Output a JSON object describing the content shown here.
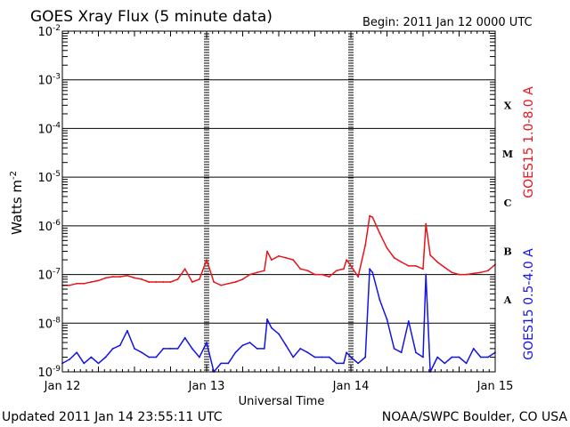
{
  "chart_data": {
    "type": "line",
    "title": "GOES Xray Flux (5 minute data)",
    "begin_label": "Begin:  2011 Jan 12 0000 UTC",
    "xlabel": "Universal Time",
    "ylabel": "Watts m",
    "ylabel_superscript": "-2",
    "y_scale": "log",
    "ylim": [
      1e-09,
      0.01
    ],
    "xlim_days": [
      0,
      3
    ],
    "x_ticks": [
      {
        "label": "Jan 12",
        "day": 0
      },
      {
        "label": "Jan 13",
        "day": 1
      },
      {
        "label": "Jan 14",
        "day": 2
      },
      {
        "label": "Jan 15",
        "day": 3
      }
    ],
    "y_ticks": [
      {
        "base": "10",
        "exp": "-9",
        "value": 1e-09
      },
      {
        "base": "10",
        "exp": "-8",
        "value": 1e-08
      },
      {
        "base": "10",
        "exp": "-7",
        "value": 1e-07
      },
      {
        "base": "10",
        "exp": "-6",
        "value": 1e-06
      },
      {
        "base": "10",
        "exp": "-5",
        "value": 1e-05
      },
      {
        "base": "10",
        "exp": "-4",
        "value": 0.0001
      },
      {
        "base": "10",
        "exp": "-3",
        "value": 0.001
      },
      {
        "base": "10",
        "exp": "-2",
        "value": 0.01
      }
    ],
    "flare_classes": [
      {
        "label": "X",
        "value": 0.0003
      },
      {
        "label": "M",
        "value": 3e-05
      },
      {
        "label": "C",
        "value": 3e-06
      },
      {
        "label": "B",
        "value": 3e-07
      },
      {
        "label": "A",
        "value": 3e-08
      }
    ],
    "grid": true,
    "legend_position": "right",
    "series": [
      {
        "name": "GOES15 1.0-8.0 A",
        "color": "#e8141a",
        "x": [
          0,
          0.05,
          0.1,
          0.15,
          0.2,
          0.25,
          0.3,
          0.35,
          0.4,
          0.45,
          0.5,
          0.55,
          0.6,
          0.65,
          0.7,
          0.75,
          0.8,
          0.85,
          0.9,
          0.95,
          1.0,
          1.05,
          1.1,
          1.15,
          1.2,
          1.25,
          1.3,
          1.35,
          1.4,
          1.42,
          1.45,
          1.5,
          1.55,
          1.6,
          1.65,
          1.7,
          1.75,
          1.8,
          1.85,
          1.9,
          1.95,
          1.97,
          2.0,
          2.05,
          2.1,
          2.13,
          2.15,
          2.2,
          2.25,
          2.3,
          2.35,
          2.4,
          2.45,
          2.5,
          2.52,
          2.55,
          2.6,
          2.65,
          2.7,
          2.75,
          2.8,
          2.85,
          2.9,
          2.95,
          3.0
        ],
        "y": [
          6e-08,
          6e-08,
          6.5e-08,
          6.5e-08,
          7e-08,
          7.5e-08,
          8.5e-08,
          9e-08,
          9e-08,
          9.5e-08,
          8.5e-08,
          8e-08,
          7e-08,
          7e-08,
          7e-08,
          7e-08,
          8e-08,
          1.3e-07,
          7e-08,
          8e-08,
          2e-07,
          7e-08,
          6e-08,
          6.5e-08,
          7e-08,
          8e-08,
          1e-07,
          1.1e-07,
          1.2e-07,
          3e-07,
          2e-07,
          2.4e-07,
          2.2e-07,
          2e-07,
          1.3e-07,
          1.2e-07,
          1e-07,
          1e-07,
          9e-08,
          1.2e-07,
          1.3e-07,
          2e-07,
          1.5e-07,
          9e-08,
          4e-07,
          1.6e-06,
          1.5e-06,
          7e-07,
          3.5e-07,
          2.2e-07,
          1.8e-07,
          1.5e-07,
          1.5e-07,
          1.3e-07,
          1.1e-06,
          2.5e-07,
          1.8e-07,
          1.4e-07,
          1.1e-07,
          1e-07,
          1e-07,
          1.05e-07,
          1.1e-07,
          1.2e-07,
          1.6e-07
        ]
      },
      {
        "name": "GOES15 0.5-4.0 A",
        "color": "#1414e6",
        "x": [
          0,
          0.05,
          0.1,
          0.15,
          0.2,
          0.25,
          0.3,
          0.35,
          0.4,
          0.45,
          0.5,
          0.55,
          0.6,
          0.65,
          0.7,
          0.75,
          0.8,
          0.85,
          0.9,
          0.95,
          1.0,
          1.05,
          1.1,
          1.15,
          1.2,
          1.25,
          1.3,
          1.35,
          1.4,
          1.42,
          1.45,
          1.5,
          1.55,
          1.6,
          1.65,
          1.7,
          1.75,
          1.8,
          1.85,
          1.9,
          1.95,
          1.97,
          2.0,
          2.05,
          2.1,
          2.13,
          2.15,
          2.2,
          2.25,
          2.3,
          2.35,
          2.4,
          2.45,
          2.5,
          2.52,
          2.55,
          2.6,
          2.65,
          2.7,
          2.75,
          2.8,
          2.85,
          2.9,
          2.95,
          3.0
        ],
        "y": [
          1.5e-09,
          1.8e-09,
          2.5e-09,
          1.5e-09,
          2e-09,
          1.5e-09,
          2e-09,
          3e-09,
          3.5e-09,
          7e-09,
          3e-09,
          2.5e-09,
          2e-09,
          2e-09,
          3e-09,
          3e-09,
          3e-09,
          5e-09,
          3e-09,
          2e-09,
          4e-09,
          1e-09,
          1.5e-09,
          1.5e-09,
          2.5e-09,
          3.5e-09,
          4e-09,
          3e-09,
          3e-09,
          1.2e-08,
          8e-09,
          6e-09,
          3.5e-09,
          2e-09,
          3e-09,
          2.5e-09,
          2e-09,
          2e-09,
          2e-09,
          1.5e-09,
          1.5e-09,
          2.5e-09,
          2e-09,
          1.5e-09,
          2e-09,
          1.3e-07,
          1.1e-07,
          3e-08,
          1.2e-08,
          3e-09,
          2.5e-09,
          1.1e-08,
          2.5e-09,
          2e-09,
          1e-07,
          1e-09,
          2e-09,
          1.5e-09,
          2e-09,
          2e-09,
          1.5e-09,
          3e-09,
          2e-09,
          2e-09,
          2.5e-09
        ]
      }
    ]
  },
  "footer": {
    "updated": "Updated 2011 Jan 14 23:55:11 UTC",
    "credit": "NOAA/SWPC Boulder, CO USA"
  }
}
